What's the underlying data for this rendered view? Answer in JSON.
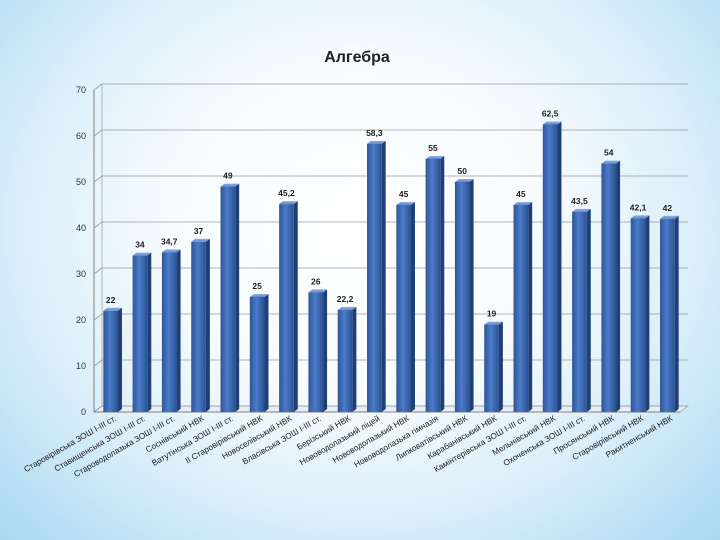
{
  "chart_data": {
    "type": "bar",
    "title": "Алгебра",
    "xlabel": "",
    "ylabel": "",
    "ylim": [
      0,
      70
    ],
    "yticks": [
      "0",
      "10",
      "20",
      "30",
      "40",
      "50",
      "60",
      "70"
    ],
    "grid": true,
    "legend": "none",
    "bar_color": "#4472c4",
    "categories": [
      "Старовірівська ЗОШ І-ІІІ ст.",
      "Ставищенська ЗОШ І-ІІІ ст.",
      "Староводолазька ЗОШ І-ІІІ ст.",
      "Соснівський НВК",
      "Ватутінська ЗОШ І-ІІІ ст.",
      "ІІ Старовірівський НВК",
      "Новоселівський НВК",
      "Власівська ЗОШ І-ІІІ ст.",
      "Берізський НВК",
      "Нововодолазький ліцей",
      "Нововодолазький НВК",
      "Нововодолазька гімназія",
      "Липковатівський НВК",
      "Карабанівський НВК",
      "Камінтерівська ЗОШ І-ІІІ ст.",
      "Мельнівський НВК",
      "Охоченська ЗОШ І-ІІІ ст.",
      "Просянський НВК",
      "Старовірівський НВК",
      "Ракитненський НВК"
    ],
    "values": [
      22,
      34,
      34.7,
      37,
      49,
      25,
      45.2,
      26,
      22.2,
      58.3,
      45,
      55,
      50,
      19,
      45,
      62.5,
      43.5,
      54,
      42.1,
      42
    ],
    "data_labels": [
      "22",
      "34",
      "34,7",
      "37",
      "49",
      "25",
      "45,2",
      "26",
      "22,2",
      "58,3",
      "45",
      "55",
      "50",
      "19",
      "45",
      "62,5",
      "43,5",
      "54",
      "42,1",
      "42"
    ]
  }
}
